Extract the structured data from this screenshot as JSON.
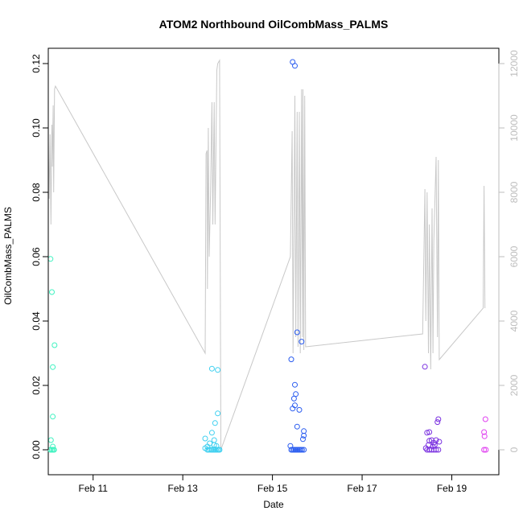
{
  "chart_data": {
    "type": "scatter",
    "title": "ATOM2 Northbound OilCombMass_PALMS",
    "xlabel": "Date",
    "ylabel": "OilCombMass_PALMS",
    "x_domain_days": [
      10.0,
      20.05
    ],
    "x_ticks": [
      {
        "label": "Feb 11",
        "day": 11
      },
      {
        "label": "Feb 13",
        "day": 13
      },
      {
        "label": "Feb 15",
        "day": 15
      },
      {
        "label": "Feb 17",
        "day": 17
      },
      {
        "label": "Feb 19",
        "day": 19
      }
    ],
    "ylim": [
      0,
      0.12
    ],
    "y_ticks": [
      "0.00",
      "0.02",
      "0.04",
      "0.06",
      "0.08",
      "0.10",
      "0.12"
    ],
    "y2lim": [
      0,
      12000
    ],
    "y2_ticks": [
      "0",
      "2000",
      "4000",
      "6000",
      "8000",
      "10000",
      "12000"
    ],
    "altitude_color": "#c8c8c8",
    "series": [
      {
        "color": "#3ff2c0",
        "points": [
          [
            10.05,
            0.0593
          ],
          [
            10.08,
            0.049
          ],
          [
            10.1,
            0.0257
          ],
          [
            10.14,
            0.0325
          ],
          [
            10.1,
            0.0103
          ],
          [
            10.06,
            0.003
          ],
          [
            10.1,
            0.001
          ],
          [
            10.05,
            0.0
          ],
          [
            10.08,
            0.0
          ],
          [
            10.11,
            0.0
          ],
          [
            10.13,
            0.0
          ]
        ]
      },
      {
        "color": "#3fd0f0",
        "points": [
          [
            13.5,
            0.0035
          ],
          [
            13.5,
            0.0005
          ],
          [
            13.55,
            0.001
          ],
          [
            13.6,
            0.002
          ],
          [
            13.65,
            0.0053
          ],
          [
            13.65,
            0.0252
          ],
          [
            13.7,
            0.0015
          ],
          [
            13.72,
            0.0083
          ],
          [
            13.78,
            0.0113
          ],
          [
            13.78,
            0.0248
          ],
          [
            13.55,
            0.0
          ],
          [
            13.58,
            0.0
          ],
          [
            13.62,
            0.0
          ],
          [
            13.65,
            0.0
          ],
          [
            13.68,
            0.0
          ],
          [
            13.71,
            0.0
          ],
          [
            13.74,
            0.0
          ],
          [
            13.77,
            0.0
          ],
          [
            13.8,
            0.0
          ],
          [
            13.82,
            0.0
          ],
          [
            13.7,
            0.003
          ],
          [
            13.75,
            0.0012
          ]
        ]
      },
      {
        "color": "#2a5cf0",
        "points": [
          [
            15.45,
            0.1205
          ],
          [
            15.5,
            0.1193
          ],
          [
            15.42,
            0.0281
          ],
          [
            15.55,
            0.0365
          ],
          [
            15.65,
            0.0336
          ],
          [
            15.5,
            0.0202
          ],
          [
            15.52,
            0.0173
          ],
          [
            15.48,
            0.0159
          ],
          [
            15.5,
            0.0138
          ],
          [
            15.45,
            0.0128
          ],
          [
            15.6,
            0.0124
          ],
          [
            15.55,
            0.0072
          ],
          [
            15.7,
            0.0058
          ],
          [
            15.7,
            0.0044
          ],
          [
            15.68,
            0.0033
          ],
          [
            15.4,
            0.0012
          ],
          [
            15.42,
            0.0
          ],
          [
            15.45,
            0.0
          ],
          [
            15.48,
            0.0
          ],
          [
            15.51,
            0.0
          ],
          [
            15.54,
            0.0
          ],
          [
            15.57,
            0.0
          ],
          [
            15.6,
            0.0
          ],
          [
            15.63,
            0.0
          ],
          [
            15.66,
            0.0
          ],
          [
            15.7,
            0.0
          ]
        ]
      },
      {
        "color": "#7a30e0",
        "points": [
          [
            18.4,
            0.0258
          ],
          [
            18.5,
            0.0055
          ],
          [
            18.45,
            0.0053
          ],
          [
            18.55,
            0.003
          ],
          [
            18.5,
            0.0028
          ],
          [
            18.7,
            0.0095
          ],
          [
            18.68,
            0.0086
          ],
          [
            18.65,
            0.003
          ],
          [
            18.72,
            0.0025
          ],
          [
            18.6,
            0.0022
          ],
          [
            18.48,
            0.0015
          ],
          [
            18.42,
            0.0005
          ],
          [
            18.45,
            0.0
          ],
          [
            18.5,
            0.0
          ],
          [
            18.55,
            0.0
          ],
          [
            18.6,
            0.0
          ],
          [
            18.65,
            0.0
          ],
          [
            18.7,
            0.0
          ],
          [
            18.58,
            0.001
          ],
          [
            18.62,
            0.0015
          ]
        ]
      },
      {
        "color": "#e040f0",
        "points": [
          [
            19.75,
            0.0095
          ],
          [
            19.72,
            0.0055
          ],
          [
            19.73,
            0.0042
          ],
          [
            19.72,
            0.0
          ],
          [
            19.76,
            0.0
          ]
        ]
      }
    ],
    "altitude_line": [
      [
        10.0,
        9600
      ],
      [
        10.02,
        7800
      ],
      [
        10.04,
        9800
      ],
      [
        10.06,
        7000
      ],
      [
        10.08,
        10100
      ],
      [
        10.09,
        8800
      ],
      [
        10.11,
        10700
      ],
      [
        10.12,
        8000
      ],
      [
        10.14,
        11200
      ],
      [
        10.16,
        11300
      ],
      [
        13.5,
        3000
      ],
      [
        13.52,
        9200
      ],
      [
        13.54,
        9300
      ],
      [
        13.55,
        5000
      ],
      [
        13.57,
        10000
      ],
      [
        13.59,
        6000
      ],
      [
        13.62,
        8000
      ],
      [
        13.65,
        10800
      ],
      [
        13.67,
        7000
      ],
      [
        13.7,
        10800
      ],
      [
        13.72,
        7000
      ],
      [
        13.76,
        11800
      ],
      [
        13.78,
        12000
      ],
      [
        13.82,
        12100
      ],
      [
        13.85,
        0
      ],
      [
        15.4,
        6000
      ],
      [
        15.42,
        8000
      ],
      [
        15.44,
        9900
      ],
      [
        15.46,
        3000
      ],
      [
        15.5,
        11000
      ],
      [
        15.52,
        3500
      ],
      [
        15.55,
        10500
      ],
      [
        15.57,
        3200
      ],
      [
        15.6,
        10500
      ],
      [
        15.62,
        3000
      ],
      [
        15.65,
        11200
      ],
      [
        15.67,
        3500
      ],
      [
        15.68,
        11200
      ],
      [
        15.7,
        3100
      ],
      [
        15.72,
        11000
      ],
      [
        15.74,
        3200
      ],
      [
        18.35,
        3600
      ],
      [
        18.4,
        8100
      ],
      [
        18.42,
        4000
      ],
      [
        18.45,
        8000
      ],
      [
        18.48,
        3000
      ],
      [
        18.5,
        7000
      ],
      [
        18.53,
        2500
      ],
      [
        18.56,
        7500
      ],
      [
        18.58,
        3000
      ],
      [
        18.6,
        6500
      ],
      [
        18.65,
        9100
      ],
      [
        18.68,
        3500
      ],
      [
        18.7,
        9000
      ],
      [
        18.72,
        2800
      ],
      [
        19.7,
        4400
      ],
      [
        19.72,
        8200
      ],
      [
        19.74,
        4400
      ]
    ]
  }
}
